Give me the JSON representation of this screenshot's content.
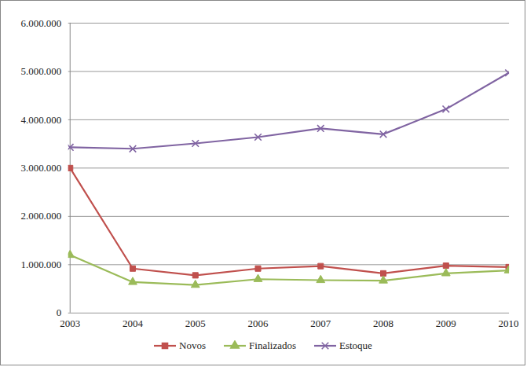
{
  "chart_data": {
    "type": "line",
    "x": [
      "2003",
      "2004",
      "2005",
      "2006",
      "2007",
      "2008",
      "2009",
      "2010"
    ],
    "series": [
      {
        "name": "Novos",
        "color": "#c0504d",
        "marker": "square",
        "values": [
          3000000,
          920000,
          780000,
          920000,
          970000,
          820000,
          980000,
          950000
        ]
      },
      {
        "name": "Finalizados",
        "color": "#9bbb59",
        "marker": "triangle",
        "values": [
          1200000,
          640000,
          580000,
          700000,
          680000,
          670000,
          820000,
          880000
        ]
      },
      {
        "name": "Estoque",
        "color": "#8064a2",
        "marker": "x",
        "values": [
          3430000,
          3400000,
          3510000,
          3640000,
          3820000,
          3700000,
          4220000,
          4970000
        ]
      }
    ],
    "ylim": [
      0,
      6000000
    ],
    "yticks": [
      0,
      {
        "value": 1000000,
        "label": "1.000.000"
      },
      {
        "value": 2000000,
        "label": "2.000.000"
      },
      {
        "value": 3000000,
        "label": "3.000.000"
      },
      {
        "value": 4000000,
        "label": "4.000.000"
      },
      {
        "value": 5000000,
        "label": "5.000.000"
      },
      {
        "value": 6000000,
        "label": "6.000.000"
      }
    ],
    "grid": true,
    "legend": "bottom"
  }
}
